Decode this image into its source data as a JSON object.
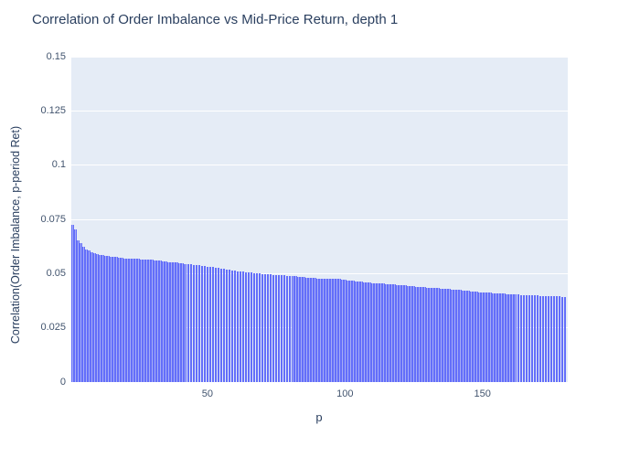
{
  "chart_data": {
    "type": "bar",
    "title": "Correlation of Order Imbalance vs Mid-Price Return, depth 1",
    "xlabel": "p",
    "ylabel": "Correlation(Order Imbalance, p-period Ret)",
    "x_start": 1,
    "x_step": 1,
    "xlim": [
      0.5,
      181
    ],
    "ylim": [
      0,
      0.15
    ],
    "x_tick_values": [
      50,
      100,
      150
    ],
    "x_tick_labels": [
      "50",
      "100",
      "150"
    ],
    "y_tick_values": [
      0,
      0.025,
      0.05,
      0.075,
      0.1,
      0.125,
      0.15
    ],
    "y_tick_labels": [
      "0",
      "0.025",
      "0.05",
      "0.075",
      "0.1",
      "0.125",
      "0.15"
    ],
    "grid": "horizontal white gridlines",
    "legend": "none",
    "bar_edge_color": "#636efa",
    "bar_fill_color": "#a6adf6",
    "plot_bgcolor": "#e5ecf6",
    "paper_bgcolor": "#ffffff",
    "title_color": "#2a3f5f",
    "tick_color": "#42546e",
    "values": [
      0.0725,
      0.0705,
      0.0655,
      0.0642,
      0.0625,
      0.0613,
      0.0605,
      0.0598,
      0.0594,
      0.059,
      0.0587,
      0.0585,
      0.0583,
      0.0581,
      0.0579,
      0.0578,
      0.0576,
      0.0574,
      0.0572,
      0.057,
      0.0569,
      0.0569,
      0.0568,
      0.0567,
      0.0567,
      0.0566,
      0.0565,
      0.0565,
      0.0564,
      0.0563,
      0.0562,
      0.056,
      0.0559,
      0.0557,
      0.0556,
      0.0554,
      0.0553,
      0.0551,
      0.055,
      0.0548,
      0.0547,
      0.0545,
      0.0544,
      0.0542,
      0.0541,
      0.0539,
      0.0538,
      0.0536,
      0.0535,
      0.0533,
      0.0531,
      0.0529,
      0.0528,
      0.0526,
      0.0524,
      0.0522,
      0.0519,
      0.0517,
      0.0514,
      0.0512,
      0.0511,
      0.051,
      0.0508,
      0.0507,
      0.0506,
      0.0505,
      0.0503,
      0.0502,
      0.05,
      0.0499,
      0.0498,
      0.0497,
      0.0496,
      0.0495,
      0.0494,
      0.0493,
      0.0492,
      0.0491,
      0.049,
      0.0489,
      0.0488,
      0.0487,
      0.0485,
      0.0484,
      0.0483,
      0.0482,
      0.0481,
      0.048,
      0.0479,
      0.0478,
      0.0478,
      0.0477,
      0.0476,
      0.0476,
      0.0475,
      0.0475,
      0.0476,
      0.0475,
      0.0473,
      0.0471,
      0.0469,
      0.0468,
      0.0466,
      0.0465,
      0.0463,
      0.0462,
      0.0461,
      0.0459,
      0.0458,
      0.0457,
      0.0456,
      0.0455,
      0.0454,
      0.0453,
      0.0452,
      0.0451,
      0.045,
      0.0449,
      0.0448,
      0.0447,
      0.0446,
      0.0445,
      0.0443,
      0.0442,
      0.0441,
      0.044,
      0.0439,
      0.0438,
      0.0437,
      0.0436,
      0.0435,
      0.0434,
      0.0433,
      0.0432,
      0.0431,
      0.043,
      0.0429,
      0.0428,
      0.0427,
      0.0426,
      0.0425,
      0.0424,
      0.0422,
      0.0421,
      0.042,
      0.0419,
      0.0418,
      0.0416,
      0.0415,
      0.0414,
      0.0413,
      0.0412,
      0.0411,
      0.041,
      0.0409,
      0.0408,
      0.0407,
      0.0407,
      0.0406,
      0.0405,
      0.0404,
      0.0404,
      0.0403,
      0.0402,
      0.0402,
      0.0401,
      0.0401,
      0.04,
      0.04,
      0.0399,
      0.0398,
      0.0398,
      0.0397,
      0.0397,
      0.0396,
      0.0395,
      0.0394,
      0.0394,
      0.0393,
      0.0392
    ]
  }
}
